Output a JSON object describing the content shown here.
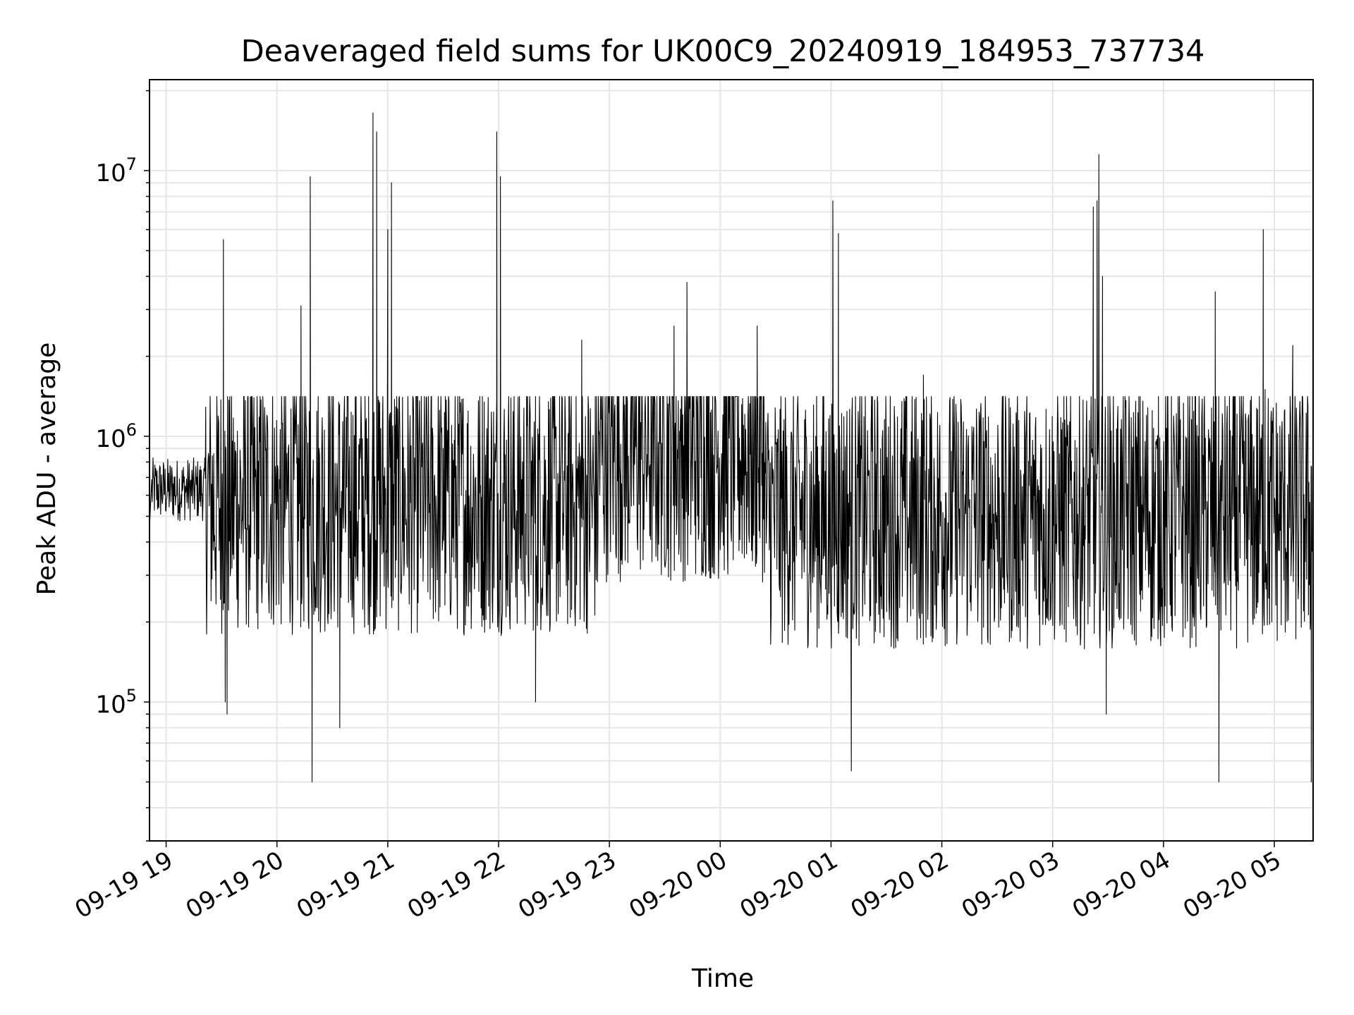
{
  "chart_data": {
    "type": "line",
    "title": "Deaveraged field sums for UK00C9_20240919_184953_737734",
    "xlabel": "Time",
    "ylabel": "Peak ADU - average",
    "yscale": "log",
    "ylim": [
      30000,
      22000000
    ],
    "xlim_hours_from_1900": [
      -0.15,
      10.35
    ],
    "grid": true,
    "line_color": "#000000",
    "grid_color": "#e6e6e6",
    "x_ticks": [
      "09-19 19",
      "09-19 20",
      "09-19 21",
      "09-19 22",
      "09-19 23",
      "09-20 00",
      "09-20 01",
      "09-20 02",
      "09-20 03",
      "09-20 04",
      "09-20 05"
    ],
    "y_ticks": [
      {
        "base": "10",
        "exp": "5",
        "value": 100000
      },
      {
        "base": "10",
        "exp": "6",
        "value": 1000000
      },
      {
        "base": "10",
        "exp": "7",
        "value": 10000000
      }
    ],
    "series": [
      {
        "x": [
          "2024-09-19T18:51",
          "2024-09-19T19:15",
          "2024-09-19T19:31",
          "2024-09-19T19:32",
          "2024-09-19T19:33",
          "2024-09-19T20:13",
          "2024-09-19T20:18",
          "2024-09-19T20:19",
          "2024-09-19T20:34",
          "2024-09-19T20:52",
          "2024-09-19T20:54",
          "2024-09-19T21:00",
          "2024-09-19T21:02",
          "2024-09-19T21:04",
          "2024-09-19T21:30",
          "2024-09-19T21:59",
          "2024-09-19T22:01",
          "2024-09-19T22:20",
          "2024-09-19T22:45",
          "2024-09-19T23:35",
          "2024-09-19T23:42",
          "2024-09-19T23:50",
          "2024-09-20T00:20",
          "2024-09-20T00:37",
          "2024-09-20T00:45",
          "2024-09-20T01:01",
          "2024-09-20T01:04",
          "2024-09-20T01:11",
          "2024-09-20T01:50",
          "2024-09-20T02:20",
          "2024-09-20T02:45",
          "2024-09-20T03:22",
          "2024-09-20T03:24",
          "2024-09-20T03:25",
          "2024-09-20T03:27",
          "2024-09-20T03:29",
          "2024-09-20T04:01",
          "2024-09-20T04:28",
          "2024-09-20T04:30",
          "2024-09-20T04:54",
          "2024-09-20T04:55",
          "2024-09-20T05:10",
          "2024-09-20T05:20"
        ],
        "values": [
          450000,
          700000,
          5500000,
          100000,
          90000,
          3100000,
          9500000,
          50000,
          80000,
          16500000,
          14000000,
          6000000,
          9000000,
          1100000,
          900000,
          14000000,
          9500000,
          100000,
          2300000,
          2600000,
          3800000,
          300000,
          2600000,
          300000,
          400000,
          7700000,
          5800000,
          55000,
          1700000,
          700000,
          1100000,
          7300000,
          7700000,
          11500000,
          4000000,
          90000,
          900000,
          3500000,
          50000,
          6000000,
          1500000,
          2200000,
          50000
        ]
      }
    ]
  }
}
